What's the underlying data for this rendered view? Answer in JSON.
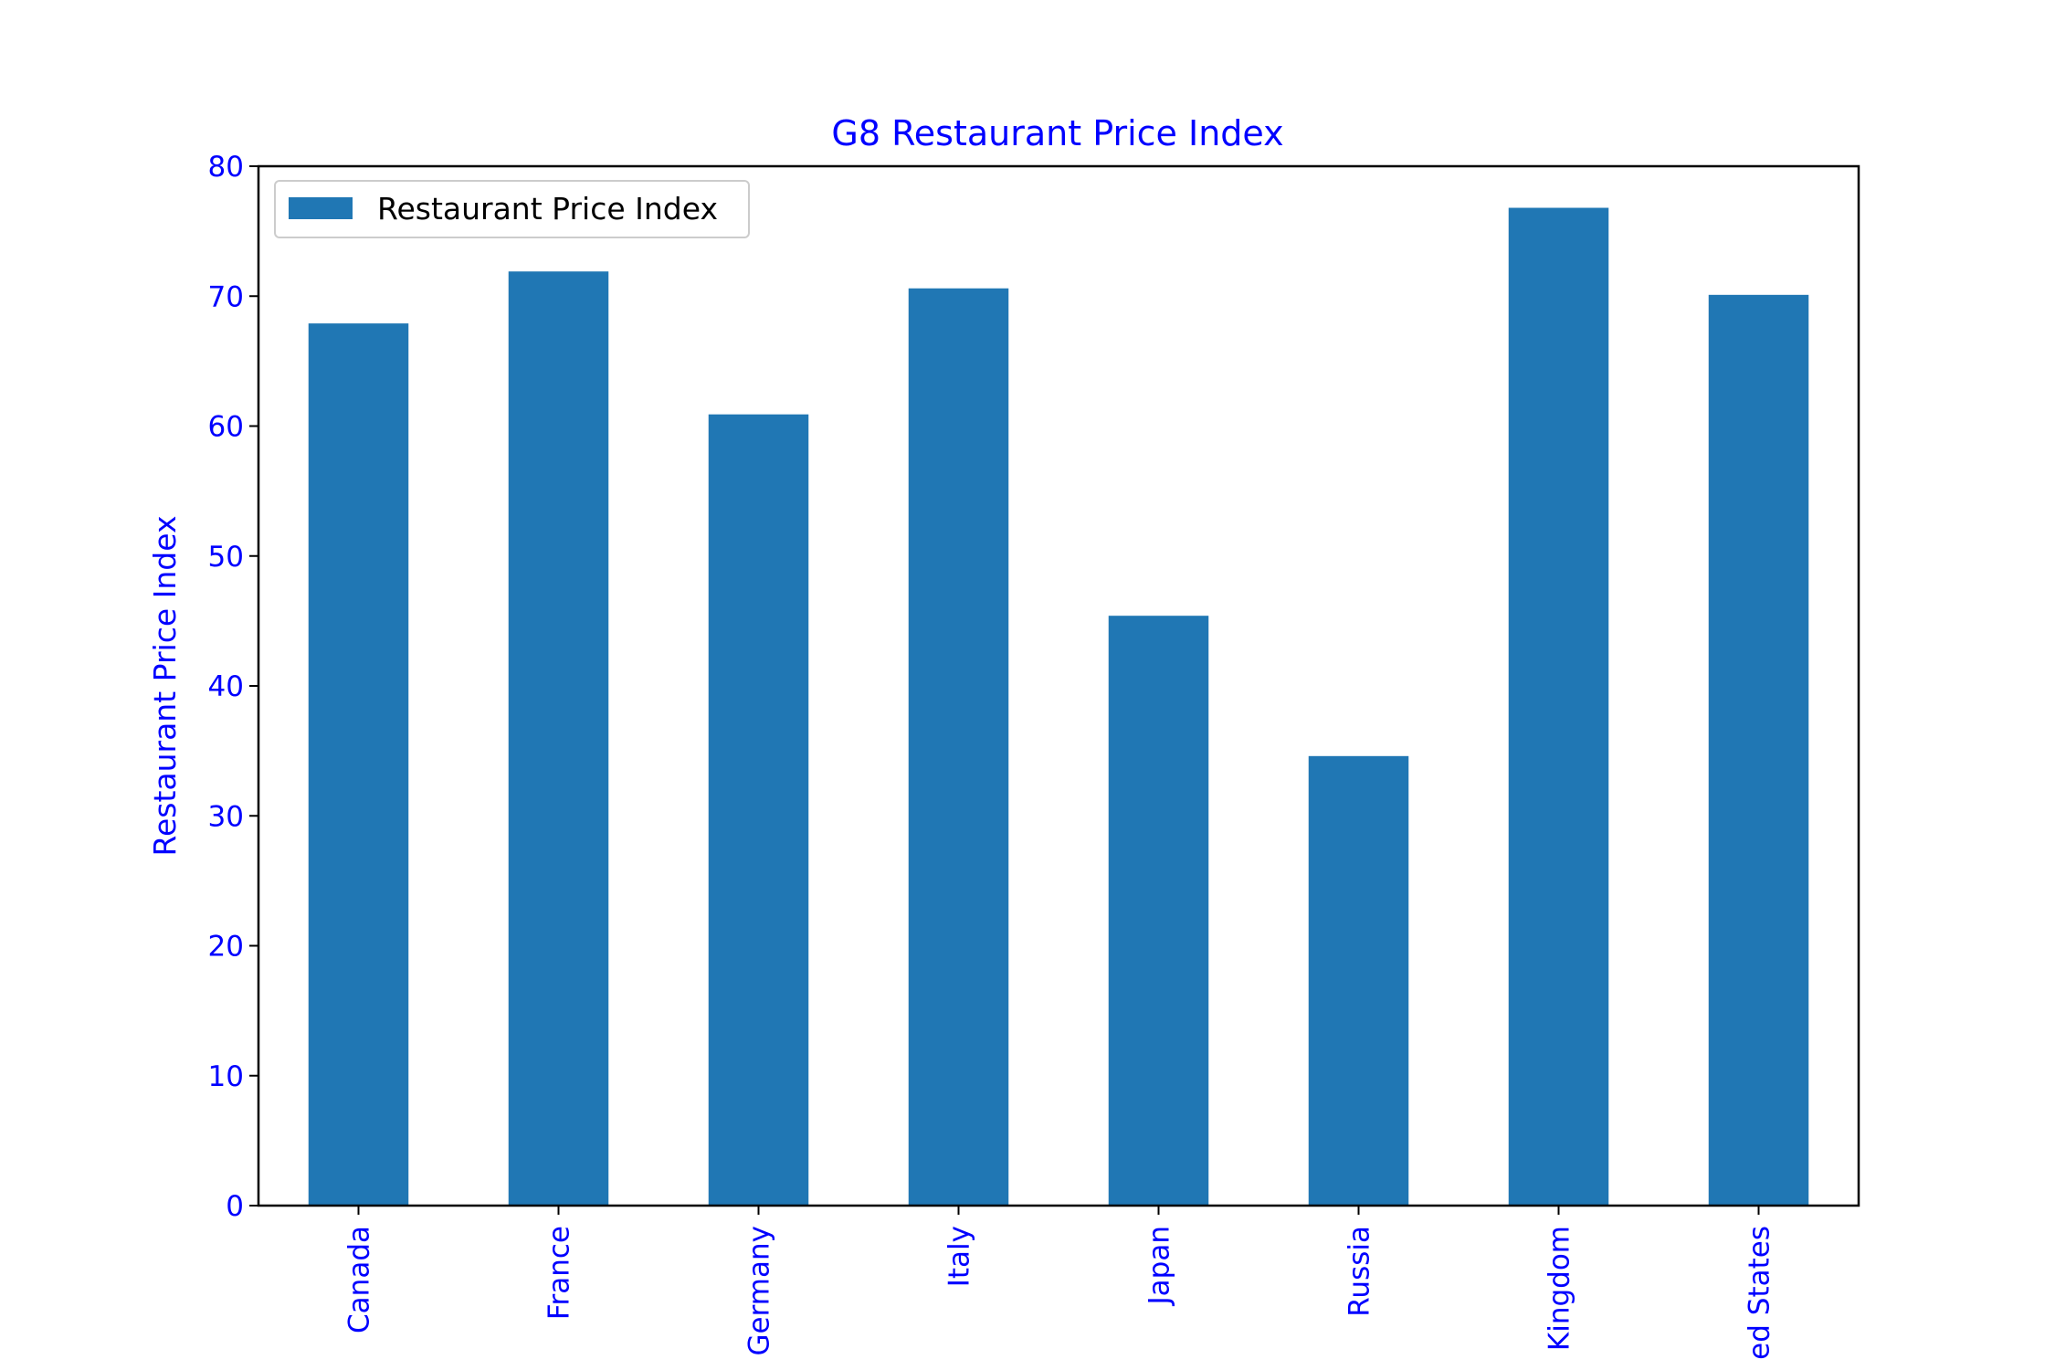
{
  "chart_data": {
    "type": "bar",
    "title": "G8 Restaurant Price Index",
    "xlabel": "",
    "ylabel": "Restaurant Price Index",
    "categories": [
      "Canada",
      "France",
      "Germany",
      "Italy",
      "Japan",
      "Russia",
      "Kingdom",
      "ed States"
    ],
    "series": [
      {
        "name": "Restaurant Price Index",
        "values": [
          67.9,
          71.9,
          60.9,
          70.6,
          45.4,
          34.6,
          76.8,
          70.1
        ]
      }
    ],
    "ylim": [
      0,
      80
    ],
    "yticks": [
      0,
      10,
      20,
      30,
      40,
      50,
      60,
      70,
      80
    ],
    "grid": false,
    "legend": "top-left",
    "colors": {
      "bar": "#2077b4",
      "text": "#0000ff",
      "axes": "#000000"
    }
  }
}
